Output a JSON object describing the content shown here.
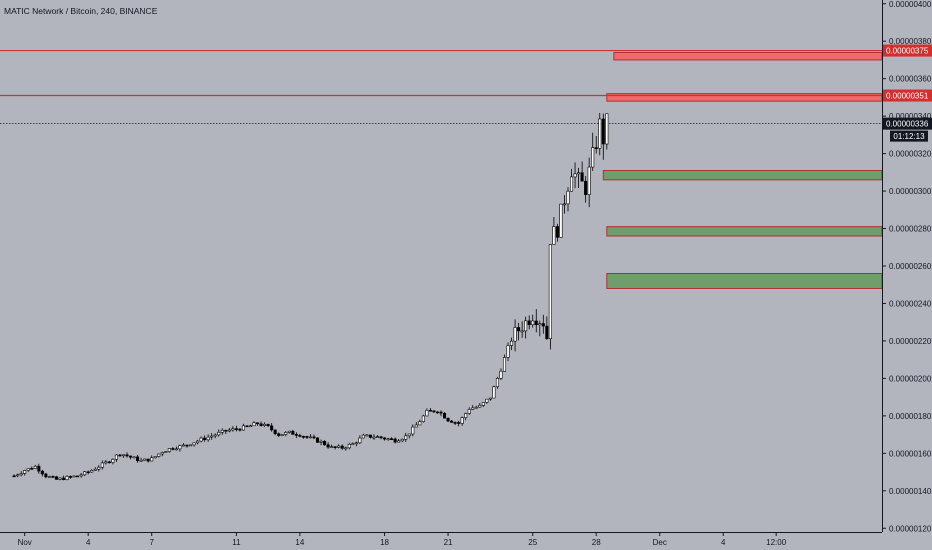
{
  "title": "MATIC Network / Bitcoin, 240, BINANCE",
  "countdown": "01:12:13",
  "colors": {
    "background": "#b2b5be",
    "resistance": "#d32f2f",
    "resistance_fill": "#ef6b6b",
    "support_fill": "#6f9e6c",
    "support_border": "#b03030",
    "candle_up": "#ffffff",
    "candle_down": "#000000"
  },
  "chart_data": {
    "type": "candlestick",
    "symbol": "MATIC Network / Bitcoin",
    "interval": "240",
    "exchange": "BINANCE",
    "y_axis": {
      "ylim": [
        1.18e-06,
        4.02e-06
      ],
      "ticks": [
        "0.00000120",
        "0.00000140",
        "0.00000160",
        "0.00000180",
        "0.00000200",
        "0.00000220",
        "0.00000240",
        "0.00000260",
        "0.00000280",
        "0.00000300",
        "0.00000320",
        "0.00000340",
        "0.00000360",
        "0.00000380",
        "0.00000400"
      ],
      "tick_values": [
        1.2e-06,
        1.4e-06,
        1.6e-06,
        1.8e-06,
        2e-06,
        2.2e-06,
        2.4e-06,
        2.6e-06,
        2.8e-06,
        3e-06,
        3.2e-06,
        3.4e-06,
        3.6e-06,
        3.8e-06,
        4e-06
      ]
    },
    "x_axis": {
      "range_bars": [
        -4,
        246
      ],
      "ticks": [
        {
          "label": "Nov",
          "bar": 3
        },
        {
          "label": "4",
          "bar": 21
        },
        {
          "label": "7",
          "bar": 39
        },
        {
          "label": "11",
          "bar": 63
        },
        {
          "label": "14",
          "bar": 81
        },
        {
          "label": "18",
          "bar": 105
        },
        {
          "label": "21",
          "bar": 123
        },
        {
          "label": "25",
          "bar": 147
        },
        {
          "label": "28",
          "bar": 165
        },
        {
          "label": "Dec",
          "bar": 183
        },
        {
          "label": "4",
          "bar": 201
        },
        {
          "label": "12:00",
          "bar": 216
        }
      ]
    },
    "current_price": 3.36e-06,
    "current_price_label": "0.00000336",
    "resistance_lines": [
      {
        "value": 3.75e-06,
        "label": "0.00000375"
      },
      {
        "value": 3.51e-06,
        "label": "0.00000351"
      }
    ],
    "zones": [
      {
        "kind": "resistance",
        "top": 3.74e-06,
        "bottom": 3.7e-06,
        "start_bar": 170
      },
      {
        "kind": "resistance",
        "top": 3.52e-06,
        "bottom": 3.48e-06,
        "start_bar": 168
      },
      {
        "kind": "support",
        "top": 3.11e-06,
        "bottom": 3.06e-06,
        "start_bar": 167
      },
      {
        "kind": "support",
        "top": 2.81e-06,
        "bottom": 2.76e-06,
        "start_bar": 168
      },
      {
        "kind": "support",
        "top": 2.56e-06,
        "bottom": 2.48e-06,
        "start_bar": 168
      }
    ],
    "close_path": [
      [
        0,
        1.48e-06
      ],
      [
        3,
        1.51e-06
      ],
      [
        6,
        1.53e-06
      ],
      [
        9,
        1.48e-06
      ],
      [
        12,
        1.46e-06
      ],
      [
        15,
        1.47e-06
      ],
      [
        18,
        1.48e-06
      ],
      [
        21,
        1.5e-06
      ],
      [
        24,
        1.53e-06
      ],
      [
        27,
        1.56e-06
      ],
      [
        30,
        1.6e-06
      ],
      [
        33,
        1.58e-06
      ],
      [
        36,
        1.56e-06
      ],
      [
        39,
        1.57e-06
      ],
      [
        42,
        1.61e-06
      ],
      [
        45,
        1.63e-06
      ],
      [
        48,
        1.64e-06
      ],
      [
        51,
        1.66e-06
      ],
      [
        54,
        1.68e-06
      ],
      [
        57,
        1.7e-06
      ],
      [
        60,
        1.72e-06
      ],
      [
        63,
        1.73e-06
      ],
      [
        66,
        1.74e-06
      ],
      [
        69,
        1.76e-06
      ],
      [
        72,
        1.74e-06
      ],
      [
        75,
        1.7e-06
      ],
      [
        78,
        1.71e-06
      ],
      [
        81,
        1.7e-06
      ],
      [
        84,
        1.68e-06
      ],
      [
        87,
        1.66e-06
      ],
      [
        90,
        1.63e-06
      ],
      [
        93,
        1.63e-06
      ],
      [
        96,
        1.65e-06
      ],
      [
        99,
        1.69e-06
      ],
      [
        102,
        1.69e-06
      ],
      [
        105,
        1.68e-06
      ],
      [
        108,
        1.67e-06
      ],
      [
        111,
        1.69e-06
      ],
      [
        114,
        1.75e-06
      ],
      [
        117,
        1.82e-06
      ],
      [
        120,
        1.83e-06
      ],
      [
        123,
        1.78e-06
      ],
      [
        126,
        1.76e-06
      ],
      [
        129,
        1.84e-06
      ],
      [
        132,
        1.85e-06
      ],
      [
        135,
        1.9e-06
      ],
      [
        138,
        2.05e-06
      ],
      [
        141,
        2.22e-06
      ],
      [
        144,
        2.28e-06
      ],
      [
        147,
        2.34e-06
      ],
      [
        150,
        2.3e-06
      ],
      [
        151,
        2.22e-06
      ],
      [
        152,
        2.75e-06
      ],
      [
        154,
        2.8e-06
      ],
      [
        156,
        2.96e-06
      ],
      [
        158,
        3.12e-06
      ],
      [
        160,
        3.05e-06
      ],
      [
        162,
        3.02e-06
      ],
      [
        164,
        3.18e-06
      ],
      [
        166,
        3.35e-06
      ],
      [
        167,
        3.28e-06
      ],
      [
        168,
        3.36e-06
      ]
    ]
  }
}
